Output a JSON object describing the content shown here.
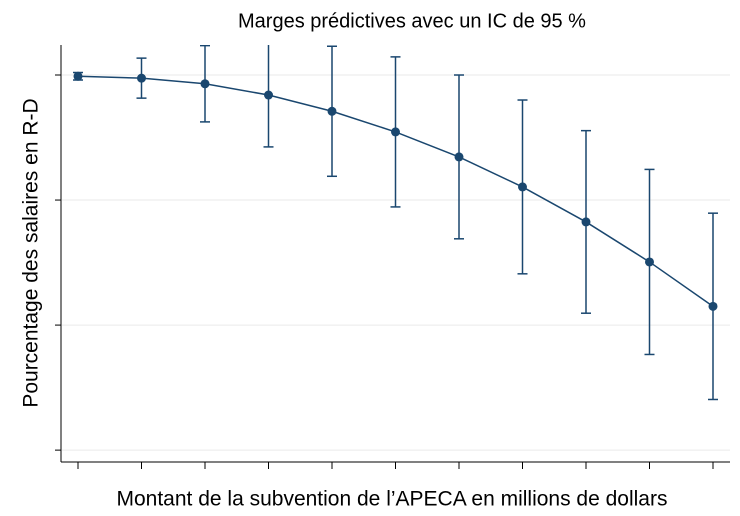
{
  "chart_data": {
    "type": "errorbar-line",
    "title": "Marges prédictives avec un IC de 95 %",
    "xlabel": "Montant de la subvention de l’APECA en millions de dollars",
    "ylabel": "Pourcentage des salaires en R-D",
    "categories": [
      null,
      null,
      null,
      null,
      null,
      null,
      null,
      null,
      null,
      null,
      null
    ],
    "values": [
      0.998,
      0.995,
      0.986,
      0.968,
      0.942,
      0.909,
      0.869,
      0.821,
      0.765,
      0.701,
      0.63
    ],
    "errors": [
      0.006,
      0.032,
      0.061,
      0.083,
      0.104,
      0.12,
      0.131,
      0.139,
      0.146,
      0.148,
      0.149
    ],
    "color": "#1a476f",
    "ylim": [
      0.381,
      1.048
    ],
    "yticks": [
      0.4,
      0.6,
      0.8,
      1.0
    ],
    "grid": true
  }
}
